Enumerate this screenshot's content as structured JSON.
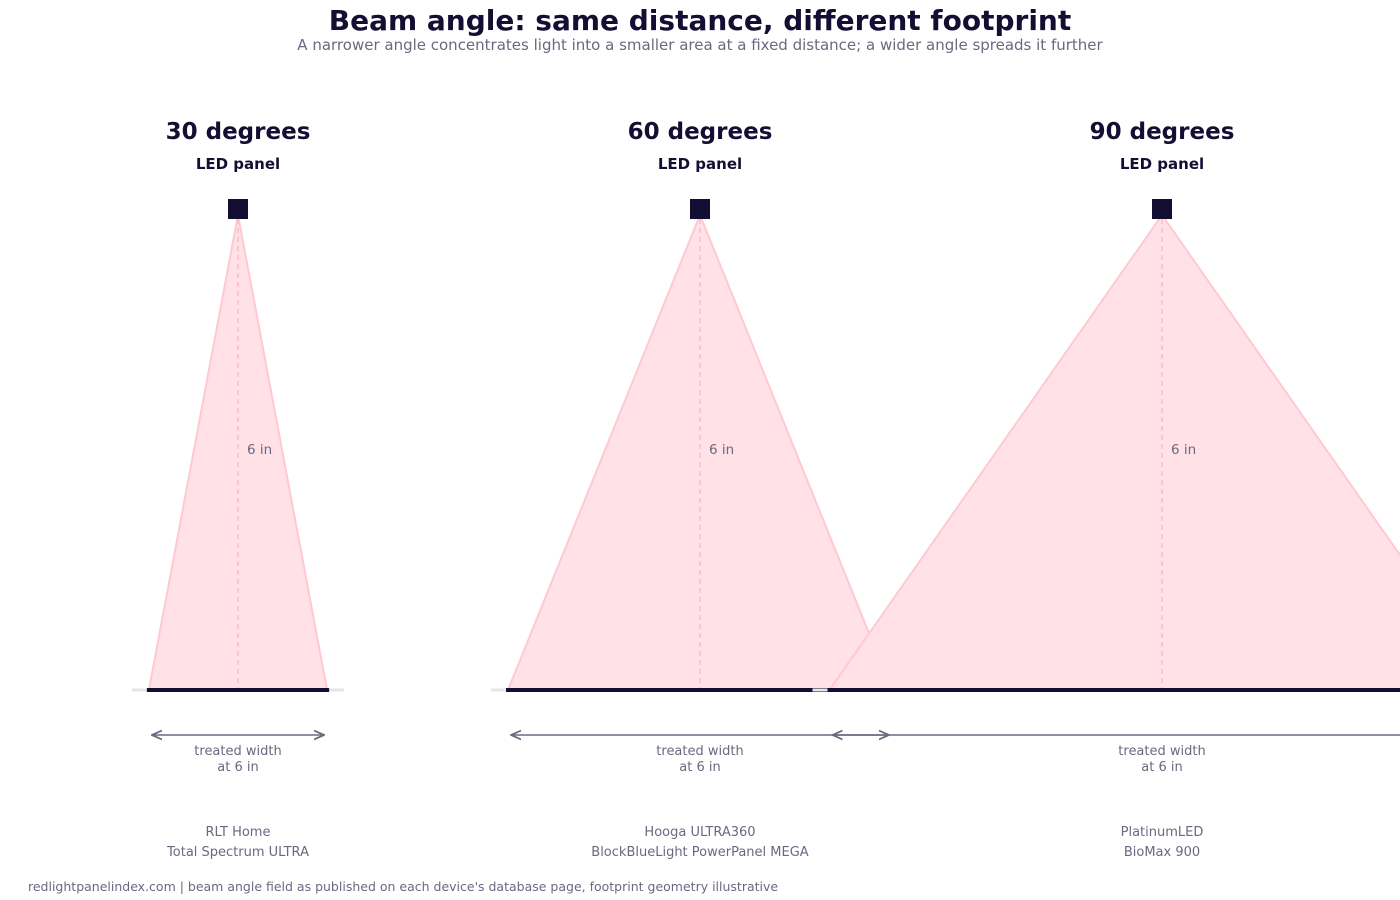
{
  "title": "Beam angle: same distance, different footprint",
  "subtitle": "A narrower angle concentrates light into a smaller area at a fixed distance; a wider angle spreads it further",
  "footer": "redlightpanelindex.com | beam angle field as published on each device's database page, footprint geometry illustrative",
  "colors": {
    "dark": "#130f33",
    "muted": "#6b6880",
    "beam_fill": "#ffe1e7",
    "beam_stroke": "#ffc9d2",
    "ground": "#e6e6e6"
  },
  "panels": [
    {
      "angle_deg": 30,
      "heading": "30 degrees",
      "source_label": "LED panel",
      "distance_label": "6 in",
      "width_label_line1": "treated width",
      "width_label_line2": "at 6 in",
      "devices": [
        "RLT Home",
        "Total Spectrum ULTRA"
      ]
    },
    {
      "angle_deg": 60,
      "heading": "60 degrees",
      "source_label": "LED panel",
      "distance_label": "6 in",
      "width_label_line1": "treated width",
      "width_label_line2": "at 6 in",
      "devices": [
        "Hooga ULTRA360",
        "BlockBlueLight PowerPanel MEGA"
      ]
    },
    {
      "angle_deg": 90,
      "heading": "90 degrees",
      "source_label": "LED panel",
      "distance_label": "6 in",
      "width_label_line1": "treated width",
      "width_label_line2": "at 6 in",
      "devices": [
        "PlatinumLED",
        "BioMax 900"
      ]
    }
  ]
}
